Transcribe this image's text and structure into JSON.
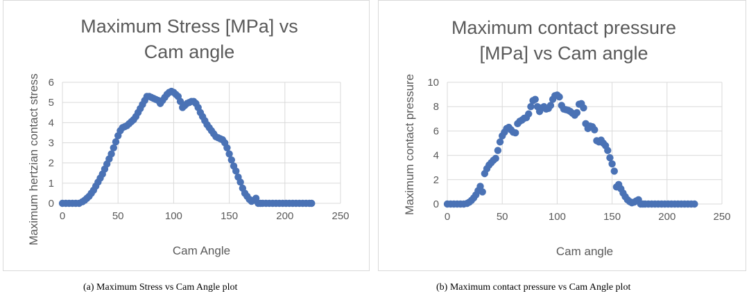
{
  "chart_data": [
    {
      "type": "scatter",
      "title_lines": [
        "Maximum Stress [MPa] vs",
        "Cam angle"
      ],
      "xlabel": "Cam Angle",
      "ylabel": "Maximum hertzian contact stress",
      "xlim": [
        0,
        250
      ],
      "ylim": [
        0,
        6
      ],
      "xticks": [
        "0",
        "50",
        "100",
        "150",
        "200",
        "250"
      ],
      "yticks": [
        "0",
        "1",
        "2",
        "3",
        "4",
        "5",
        "6"
      ],
      "grid": true,
      "color": "#4a72b5",
      "points": [
        [
          0,
          0
        ],
        [
          3,
          0
        ],
        [
          6,
          0
        ],
        [
          9,
          0
        ],
        [
          12,
          0
        ],
        [
          15,
          0
        ],
        [
          18,
          0.08
        ],
        [
          20,
          0.15
        ],
        [
          22,
          0.25
        ],
        [
          24,
          0.35
        ],
        [
          26,
          0.5
        ],
        [
          28,
          0.65
        ],
        [
          30,
          0.85
        ],
        [
          32,
          1.05
        ],
        [
          34,
          1.25
        ],
        [
          36,
          1.45
        ],
        [
          38,
          1.7
        ],
        [
          40,
          1.95
        ],
        [
          42,
          2.2
        ],
        [
          44,
          2.45
        ],
        [
          46,
          2.75
        ],
        [
          48,
          3.05
        ],
        [
          50,
          3.35
        ],
        [
          52,
          3.6
        ],
        [
          54,
          3.75
        ],
        [
          56,
          3.8
        ],
        [
          58,
          3.85
        ],
        [
          60,
          3.95
        ],
        [
          62,
          4.05
        ],
        [
          64,
          4.15
        ],
        [
          66,
          4.3
        ],
        [
          68,
          4.5
        ],
        [
          70,
          4.7
        ],
        [
          72,
          4.9
        ],
        [
          74,
          5.1
        ],
        [
          76,
          5.3
        ],
        [
          78,
          5.3
        ],
        [
          80,
          5.25
        ],
        [
          82,
          5.2
        ],
        [
          84,
          5.15
        ],
        [
          86,
          5.1
        ],
        [
          88,
          4.95
        ],
        [
          90,
          5.1
        ],
        [
          92,
          5.25
        ],
        [
          94,
          5.4
        ],
        [
          96,
          5.5
        ],
        [
          98,
          5.55
        ],
        [
          100,
          5.5
        ],
        [
          102,
          5.4
        ],
        [
          104,
          5.3
        ],
        [
          106,
          5.05
        ],
        [
          108,
          4.75
        ],
        [
          110,
          4.85
        ],
        [
          112,
          4.95
        ],
        [
          114,
          5.0
        ],
        [
          116,
          5.05
        ],
        [
          118,
          5.05
        ],
        [
          120,
          4.95
        ],
        [
          122,
          4.75
        ],
        [
          124,
          4.5
        ],
        [
          126,
          4.3
        ],
        [
          128,
          4.1
        ],
        [
          130,
          3.9
        ],
        [
          132,
          3.75
        ],
        [
          134,
          3.6
        ],
        [
          136,
          3.45
        ],
        [
          138,
          3.3
        ],
        [
          140,
          3.25
        ],
        [
          142,
          3.2
        ],
        [
          144,
          3.15
        ],
        [
          146,
          3.0
        ],
        [
          148,
          2.75
        ],
        [
          150,
          2.45
        ],
        [
          152,
          2.15
        ],
        [
          154,
          1.85
        ],
        [
          156,
          1.6
        ],
        [
          158,
          1.3
        ],
        [
          160,
          1.05
        ],
        [
          162,
          0.75
        ],
        [
          164,
          0.5
        ],
        [
          166,
          0.35
        ],
        [
          168,
          0.2
        ],
        [
          170,
          0.1
        ],
        [
          172,
          0.15
        ],
        [
          174,
          0.25
        ],
        [
          176,
          0
        ],
        [
          178,
          0
        ],
        [
          180,
          0
        ],
        [
          183,
          0
        ],
        [
          186,
          0
        ],
        [
          189,
          0
        ],
        [
          192,
          0
        ],
        [
          195,
          0
        ],
        [
          198,
          0
        ],
        [
          201,
          0
        ],
        [
          204,
          0
        ],
        [
          207,
          0
        ],
        [
          210,
          0
        ],
        [
          213,
          0
        ],
        [
          216,
          0
        ],
        [
          219,
          0
        ],
        [
          222,
          0
        ],
        [
          224,
          0
        ]
      ]
    },
    {
      "type": "scatter",
      "title_lines": [
        "Maximum contact pressure",
        "[MPa] vs Cam angle"
      ],
      "xlabel": "Cam angle",
      "ylabel": "Maximum contact pressure",
      "xlim": [
        0,
        250
      ],
      "ylim": [
        0,
        10
      ],
      "xticks": [
        "0",
        "50",
        "100",
        "150",
        "200",
        "250"
      ],
      "yticks": [
        "0",
        "2",
        "4",
        "6",
        "8",
        "10"
      ],
      "grid": true,
      "color": "#4a72b5",
      "points": [
        [
          0,
          0
        ],
        [
          3,
          0
        ],
        [
          6,
          0
        ],
        [
          9,
          0
        ],
        [
          12,
          0
        ],
        [
          15,
          0
        ],
        [
          18,
          0.05
        ],
        [
          20,
          0.15
        ],
        [
          22,
          0.3
        ],
        [
          24,
          0.5
        ],
        [
          26,
          0.75
        ],
        [
          28,
          1.1
        ],
        [
          30,
          1.45
        ],
        [
          32,
          1.0
        ],
        [
          34,
          2.5
        ],
        [
          36,
          2.9
        ],
        [
          38,
          3.2
        ],
        [
          40,
          3.4
        ],
        [
          42,
          3.6
        ],
        [
          44,
          3.75
        ],
        [
          46,
          4.4
        ],
        [
          48,
          5.1
        ],
        [
          50,
          5.6
        ],
        [
          52,
          5.9
        ],
        [
          54,
          6.2
        ],
        [
          56,
          6.3
        ],
        [
          58,
          6.1
        ],
        [
          60,
          5.9
        ],
        [
          62,
          5.85
        ],
        [
          64,
          6.6
        ],
        [
          66,
          6.8
        ],
        [
          68,
          6.9
        ],
        [
          70,
          7.05
        ],
        [
          72,
          7.1
        ],
        [
          74,
          7.4
        ],
        [
          76,
          8.0
        ],
        [
          78,
          8.5
        ],
        [
          80,
          8.6
        ],
        [
          82,
          8.0
        ],
        [
          84,
          7.6
        ],
        [
          86,
          7.9
        ],
        [
          88,
          8.0
        ],
        [
          90,
          7.8
        ],
        [
          92,
          7.85
        ],
        [
          94,
          8.1
        ],
        [
          96,
          8.6
        ],
        [
          98,
          8.9
        ],
        [
          100,
          8.95
        ],
        [
          102,
          8.8
        ],
        [
          104,
          8.1
        ],
        [
          106,
          7.8
        ],
        [
          108,
          7.75
        ],
        [
          110,
          7.7
        ],
        [
          112,
          7.6
        ],
        [
          114,
          7.45
        ],
        [
          116,
          7.3
        ],
        [
          118,
          7.5
        ],
        [
          120,
          8.2
        ],
        [
          122,
          8.25
        ],
        [
          124,
          7.9
        ],
        [
          126,
          6.6
        ],
        [
          128,
          6.2
        ],
        [
          130,
          6.4
        ],
        [
          132,
          6.35
        ],
        [
          134,
          6.1
        ],
        [
          136,
          5.2
        ],
        [
          138,
          5.1
        ],
        [
          140,
          5.25
        ],
        [
          142,
          5.0
        ],
        [
          144,
          4.8
        ],
        [
          146,
          4.4
        ],
        [
          148,
          3.8
        ],
        [
          150,
          3.3
        ],
        [
          152,
          2.7
        ],
        [
          154,
          1.4
        ],
        [
          156,
          1.6
        ],
        [
          158,
          1.25
        ],
        [
          160,
          0.9
        ],
        [
          162,
          0.6
        ],
        [
          164,
          0.35
        ],
        [
          166,
          0.2
        ],
        [
          168,
          0.1
        ],
        [
          170,
          0.15
        ],
        [
          172,
          0.25
        ],
        [
          174,
          0.35
        ],
        [
          176,
          0
        ],
        [
          178,
          0
        ],
        [
          180,
          0
        ],
        [
          183,
          0
        ],
        [
          186,
          0
        ],
        [
          189,
          0
        ],
        [
          192,
          0
        ],
        [
          195,
          0
        ],
        [
          198,
          0
        ],
        [
          201,
          0
        ],
        [
          204,
          0
        ],
        [
          207,
          0
        ],
        [
          210,
          0
        ],
        [
          213,
          0
        ],
        [
          216,
          0
        ],
        [
          219,
          0
        ],
        [
          222,
          0
        ],
        [
          225,
          0
        ]
      ]
    }
  ],
  "captions": {
    "a": "(a) Maximum Stress vs Cam Angle plot",
    "b": "(b) Maximum contact pressure vs Cam Angle plot"
  }
}
